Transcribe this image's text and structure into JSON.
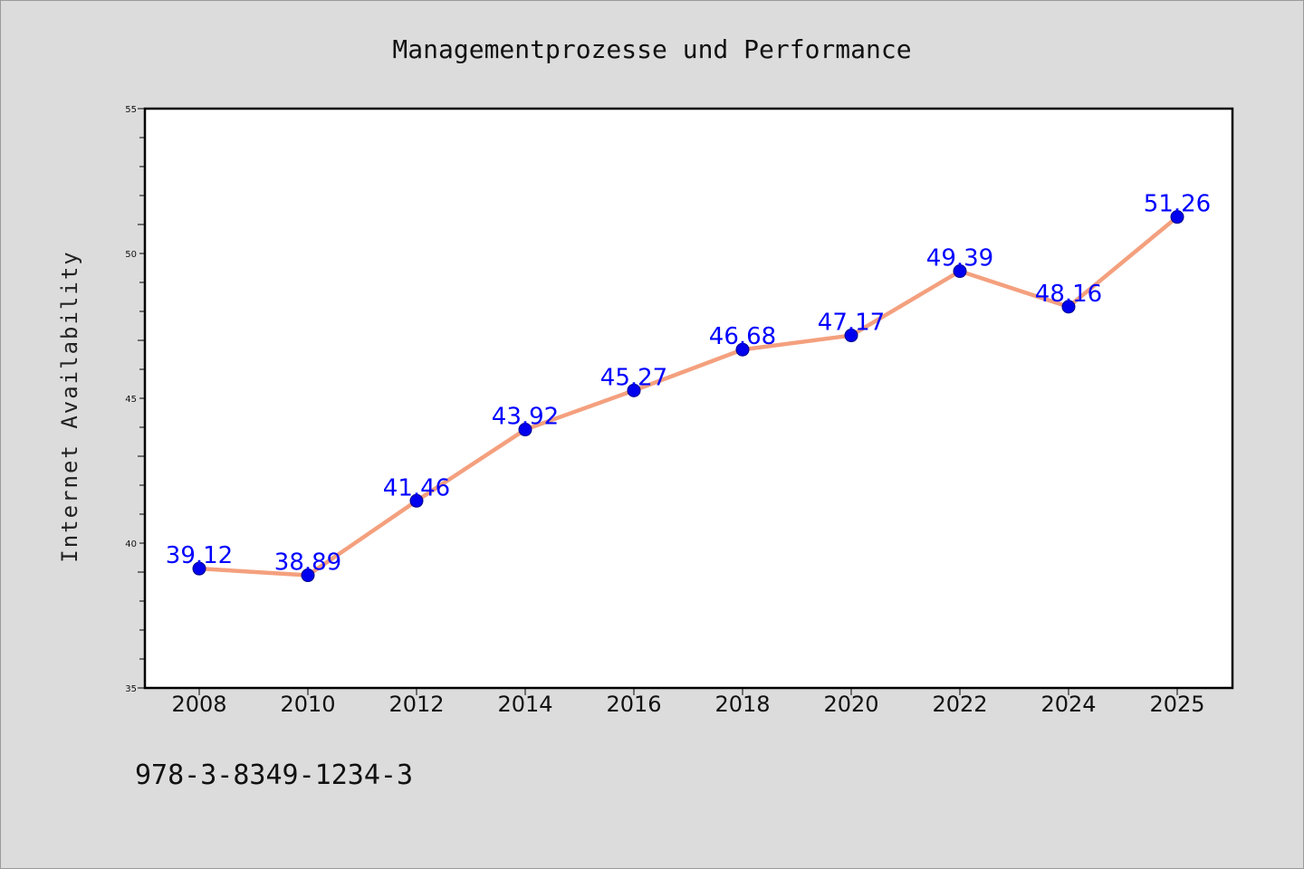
{
  "chart_data": {
    "type": "line",
    "title": "Managementprozesse und Performance",
    "xlabel": "",
    "ylabel": "Internet Availability",
    "categories": [
      "2008",
      "2010",
      "2012",
      "2014",
      "2016",
      "2018",
      "2020",
      "2022",
      "2024",
      "2025"
    ],
    "series": [
      {
        "values": [
          39.12,
          38.89,
          41.46,
          43.92,
          45.27,
          46.68,
          47.17,
          49.39,
          48.16,
          51.26
        ],
        "labels": [
          "39.12",
          "38.89",
          "41.46",
          "43.92",
          "45.27",
          "46.68",
          "47.17",
          "49.39",
          "48.16",
          "51.26"
        ],
        "line_color": "#f4a07e",
        "marker_color": "#0000ee",
        "label_color": "#0000ff"
      }
    ],
    "ylim": [
      35,
      55
    ],
    "yticks": [
      "35",
      "40",
      "45",
      "50",
      "55"
    ],
    "grid": false,
    "legend": "none"
  },
  "footer": {
    "isbn": "978-3-8349-1234-3"
  }
}
